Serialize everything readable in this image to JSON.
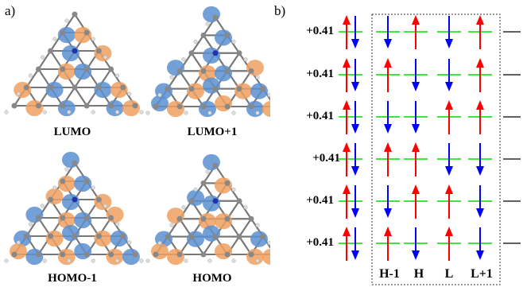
{
  "panel_a": {
    "label": "a)",
    "orbitals": [
      {
        "id": "lumo",
        "title": "LUMO"
      },
      {
        "id": "lumo1",
        "title": "LUMO+1"
      },
      {
        "id": "homo1",
        "title": "HOMO-1"
      },
      {
        "id": "homo",
        "title": "HOMO"
      }
    ]
  },
  "panel_b": {
    "label": "b)",
    "column_labels": [
      "H-1",
      "H",
      "L",
      "L+1"
    ],
    "rows": [
      {
        "charge": "+0.41",
        "spins": [
          "updown",
          "down",
          "up",
          "down",
          "up"
        ]
      },
      {
        "charge": "+0.41",
        "spins": [
          "updown",
          "up",
          "down",
          "down",
          "up"
        ]
      },
      {
        "charge": "+0.41",
        "spins": [
          "updown",
          "down",
          "down",
          "up",
          "up"
        ]
      },
      {
        "charge": "+0.41",
        "spins": [
          "updown",
          "up",
          "up",
          "down",
          "down"
        ]
      },
      {
        "charge": "+0.41",
        "spins": [
          "updown",
          "down",
          "up",
          "up",
          "down"
        ]
      },
      {
        "charge": "+0.41",
        "spins": [
          "updown",
          "up",
          "down",
          "up",
          "down"
        ]
      }
    ],
    "colors": {
      "up": "#ff0000",
      "down": "#0000ff",
      "level": "#00dd00",
      "right_level": "#000000"
    }
  }
}
